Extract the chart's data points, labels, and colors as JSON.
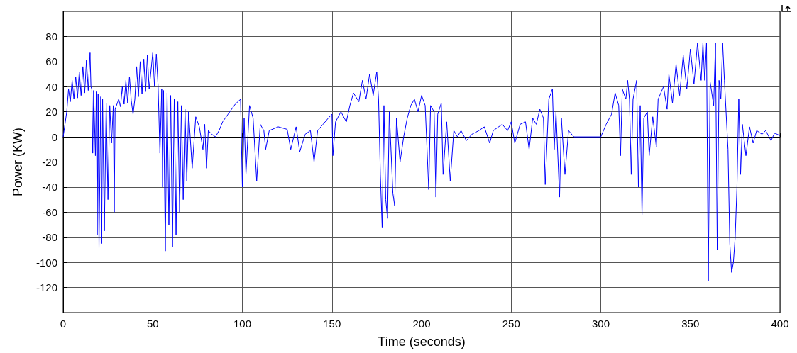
{
  "chart_data": {
    "type": "line",
    "xlabel": "Time (seconds)",
    "ylabel": "Power (KW)",
    "xlim": [
      0,
      400
    ],
    "xticks": [
      0,
      50,
      100,
      150,
      200,
      250,
      300,
      350,
      400
    ],
    "ylim": [
      -140,
      100
    ],
    "yticks": [
      -120,
      -100,
      -80,
      -60,
      -40,
      -20,
      0,
      20,
      40,
      60,
      80
    ],
    "grid": true,
    "series": [
      {
        "color": "#0000ff",
        "x": [
          0,
          2,
          3,
          4,
          5,
          6,
          7,
          8,
          9,
          10,
          11,
          12,
          13,
          14,
          15,
          15.5,
          16,
          16.5,
          17,
          18,
          18.5,
          19,
          19.5,
          20,
          21,
          21.5,
          22,
          23,
          24,
          25,
          26,
          27,
          28,
          28.5,
          29,
          31,
          32,
          33,
          34,
          35,
          36,
          37,
          38,
          39,
          40,
          41,
          42,
          43,
          44,
          45,
          46,
          47,
          48,
          50,
          51,
          52,
          53,
          54,
          55,
          55.5,
          56,
          57,
          58,
          59,
          60,
          61,
          62,
          63,
          64,
          65,
          66,
          67,
          68,
          69,
          70,
          72,
          74,
          76,
          78,
          79,
          80,
          81,
          83,
          85,
          87,
          89,
          92,
          94,
          96,
          99,
          100,
          101,
          102,
          104,
          106,
          108,
          110,
          112,
          113,
          115,
          120,
          125,
          127,
          130,
          132,
          135,
          138,
          140,
          142,
          145,
          148,
          150,
          150.5,
          152,
          155,
          158,
          160,
          162,
          165,
          167,
          169,
          171,
          173,
          175,
          176,
          177,
          178,
          179,
          180,
          181,
          182,
          184,
          185,
          186,
          188,
          190,
          192,
          194,
          196,
          198,
          200,
          202,
          204,
          205,
          207,
          208,
          209,
          211,
          212,
          214,
          216,
          218,
          220,
          222,
          225,
          228,
          232,
          235,
          238,
          240,
          245,
          248,
          250,
          252,
          255,
          258,
          260,
          262,
          264,
          266,
          268,
          269,
          271,
          273,
          274,
          275,
          277,
          278,
          280,
          282,
          285,
          300,
          303,
          306,
          308,
          310,
          311,
          312,
          314,
          315,
          316,
          317,
          318,
          320,
          321,
          322,
          323,
          324,
          326,
          327,
          329,
          331,
          332,
          335,
          337,
          338,
          340,
          342,
          344,
          346,
          348,
          350,
          352,
          354,
          356,
          357,
          358,
          359,
          360,
          361,
          363,
          364,
          365,
          366,
          367,
          368,
          369,
          371,
          372,
          373,
          374,
          375,
          376,
          377,
          378,
          379,
          381,
          383,
          385,
          387,
          390,
          392,
          395,
          397,
          400
        ],
        "values": [
          0,
          20,
          38,
          28,
          45,
          30,
          48,
          31,
          52,
          33,
          56,
          35,
          61,
          37,
          67,
          40,
          38,
          -13,
          37,
          -15,
          36,
          -78,
          34,
          -89,
          32,
          -85,
          30,
          -75,
          27,
          -50,
          25,
          -5,
          25,
          -60,
          22,
          30,
          24,
          40,
          26,
          45,
          27,
          48,
          29,
          18,
          30,
          56,
          32,
          60,
          34,
          62,
          36,
          65,
          38,
          67,
          40,
          66,
          40,
          -13,
          38,
          -40,
          37,
          -91,
          35,
          -70,
          33,
          -88,
          30,
          -78,
          28,
          -60,
          25,
          -50,
          22,
          -35,
          20,
          -25,
          16,
          8,
          -10,
          10,
          -25,
          5,
          2,
          0,
          5,
          12,
          18,
          22,
          26,
          30,
          -40,
          15,
          -30,
          25,
          15,
          -35,
          10,
          5,
          -10,
          5,
          8,
          6,
          -10,
          8,
          -12,
          2,
          5,
          -20,
          5,
          10,
          15,
          18,
          -15,
          12,
          20,
          12,
          25,
          35,
          28,
          45,
          30,
          50,
          33,
          52,
          30,
          -30,
          -72,
          25,
          -50,
          -65,
          20,
          -45,
          -55,
          15,
          -20,
          0,
          15,
          25,
          30,
          20,
          33,
          25,
          -42,
          25,
          20,
          -48,
          18,
          27,
          -30,
          12,
          -35,
          5,
          0,
          5,
          -3,
          2,
          5,
          8,
          -5,
          5,
          10,
          5,
          12,
          -5,
          10,
          12,
          -10,
          15,
          10,
          22,
          15,
          -38,
          30,
          38,
          -10,
          20,
          -48,
          15,
          -30,
          5,
          0,
          0,
          10,
          18,
          35,
          25,
          -15,
          38,
          30,
          45,
          30,
          -30,
          30,
          45,
          -40,
          25,
          -62,
          15,
          20,
          -15,
          16,
          -8,
          30,
          40,
          22,
          50,
          27,
          58,
          33,
          65,
          38,
          70,
          42,
          75,
          45,
          75,
          45,
          75,
          -115,
          44,
          25,
          75,
          -90,
          45,
          30,
          75,
          45,
          -10,
          -85,
          -108,
          -100,
          -80,
          -40,
          30,
          -30,
          10,
          -15,
          8,
          -5,
          5,
          2,
          5,
          -3,
          3,
          1
        ]
      }
    ]
  }
}
